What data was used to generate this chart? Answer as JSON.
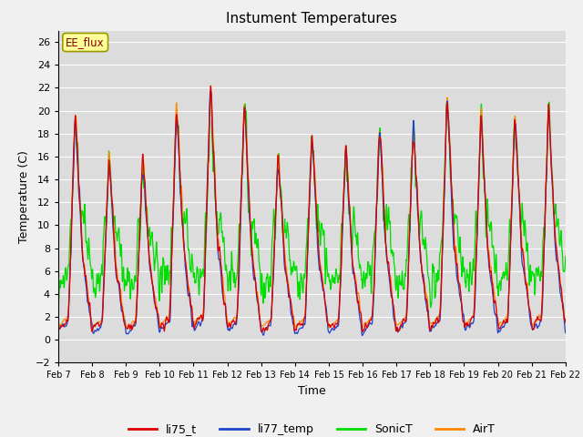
{
  "title": "Instument Temperatures",
  "xlabel": "Time",
  "ylabel": "Temperature (C)",
  "ylim": [
    -2,
    27
  ],
  "yticks": [
    -2,
    0,
    2,
    4,
    6,
    8,
    10,
    12,
    14,
    16,
    18,
    20,
    22,
    24,
    26
  ],
  "annotation": "EE_flux",
  "plot_bg_color": "#dcdcdc",
  "fig_bg_color": "#f0f0f0",
  "colors": {
    "li75_t": "#dd0000",
    "li77_temp": "#2244cc",
    "SonicT": "#00dd00",
    "AirT": "#ff8800"
  },
  "legend_labels": [
    "li75_t",
    "li77_temp",
    "SonicT",
    "AirT"
  ],
  "x_tick_labels": [
    "Feb 7",
    "Feb 8",
    "Feb 9",
    "Feb 10",
    "Feb 11",
    "Feb 12",
    "Feb 13",
    "Feb 14",
    "Feb 15",
    "Feb 16",
    "Feb 17",
    "Feb 18",
    "Feb 19",
    "Feb 20",
    "Feb 21",
    "Feb 22"
  ],
  "n_days": 15,
  "pts_per_day": 144,
  "seed": 77
}
